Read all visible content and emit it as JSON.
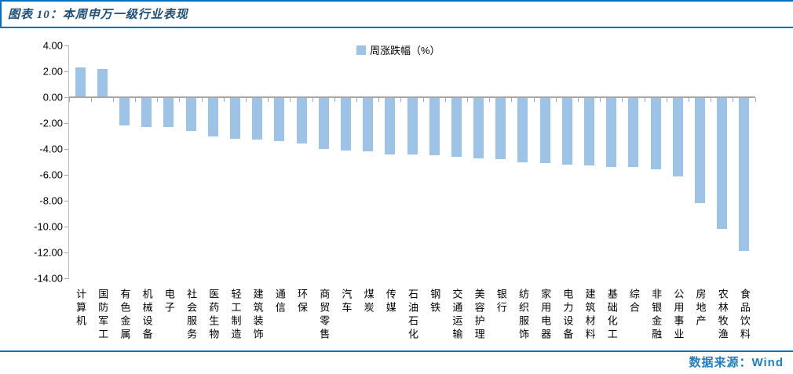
{
  "header": {
    "title": "图表 10：本周申万一级行业表现"
  },
  "footer": {
    "source": "数据来源：Wind"
  },
  "colors": {
    "rule": "#0070C0",
    "title": "#1F4E79",
    "source": "#1F7EC4",
    "bar": "#9DC3E6",
    "axis": "#A6A6A6",
    "axis_light": "#BFBFBF"
  },
  "chart_data": {
    "type": "bar",
    "title": "",
    "legend": "周涨跌幅（%）",
    "legend_position": "top-center",
    "grid": false,
    "ylim": [
      -14,
      4
    ],
    "ytick_step": 2,
    "ytick_labels": [
      "4.00",
      "2.00",
      "0.00",
      "-2.00",
      "-4.00",
      "-6.00",
      "-8.00",
      "-10.00",
      "-12.00",
      "-14.00"
    ],
    "categories": [
      "计算机",
      "国防军工",
      "有色金属",
      "机械设备",
      "电子",
      "社会服务",
      "医药生物",
      "轻工制造",
      "建筑装饰",
      "通信",
      "环保",
      "商贸零售",
      "汽车",
      "煤炭",
      "传媒",
      "石油石化",
      "钢铁",
      "交通运输",
      "美容护理",
      "银行",
      "纺织服饰",
      "家用电器",
      "电力设备",
      "建筑材料",
      "基础化工",
      "综合",
      "非银金融",
      "公用事业",
      "房地产",
      "农林牧渔",
      "食品饮料"
    ],
    "series": [
      {
        "name": "周涨跌幅（%）",
        "values": [
          2.3,
          2.2,
          -2.2,
          -2.3,
          -2.3,
          -2.6,
          -3.0,
          -3.2,
          -3.3,
          -3.4,
          -3.6,
          -4.0,
          -4.1,
          -4.2,
          -4.4,
          -4.4,
          -4.5,
          -4.6,
          -4.7,
          -4.8,
          -5.0,
          -5.1,
          -5.2,
          -5.3,
          -5.4,
          -5.4,
          -5.6,
          -6.1,
          -8.2,
          -10.2,
          -11.9
        ]
      }
    ]
  }
}
